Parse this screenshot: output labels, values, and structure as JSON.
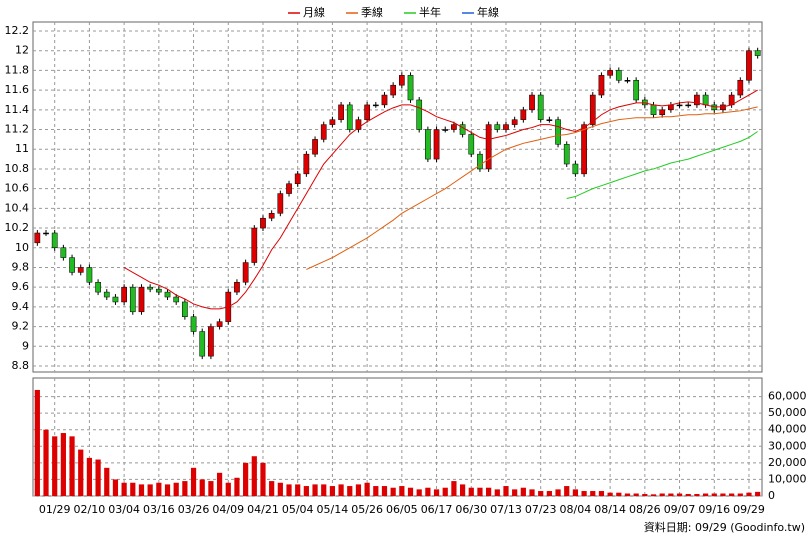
{
  "chart_data": {
    "type": "candlestick",
    "categories": [
      null,
      null,
      "01/29",
      null,
      null,
      null,
      "02/10",
      null,
      null,
      null,
      "03/04",
      null,
      null,
      null,
      "03/16",
      null,
      null,
      null,
      "03/26",
      null,
      null,
      null,
      "04/09",
      null,
      null,
      null,
      "04/21",
      null,
      null,
      null,
      "05/04",
      null,
      null,
      null,
      "05/14",
      null,
      null,
      null,
      "05/26",
      null,
      null,
      null,
      "06/05",
      null,
      null,
      null,
      "06/17",
      null,
      null,
      null,
      "06/30",
      null,
      null,
      null,
      "07/13",
      null,
      null,
      null,
      "07/23",
      null,
      null,
      null,
      "08/04",
      null,
      null,
      null,
      "08/14",
      null,
      null,
      null,
      "08/26",
      null,
      null,
      null,
      "09/07",
      null,
      null,
      null,
      "09/16",
      null,
      null,
      null,
      "09/29",
      null
    ],
    "candles": [
      [
        10.05,
        10.18,
        10.02,
        10.15
      ],
      [
        10.15,
        10.18,
        10.12,
        10.15
      ],
      [
        10.15,
        10.18,
        9.97,
        10.0
      ],
      [
        10.0,
        10.03,
        9.87,
        9.9
      ],
      [
        9.9,
        9.93,
        9.72,
        9.75
      ],
      [
        9.75,
        9.83,
        9.72,
        9.8
      ],
      [
        9.8,
        9.83,
        9.62,
        9.65
      ],
      [
        9.65,
        9.68,
        9.52,
        9.55
      ],
      [
        9.55,
        9.58,
        9.47,
        9.5
      ],
      [
        9.5,
        9.53,
        9.42,
        9.45
      ],
      [
        9.45,
        9.63,
        9.42,
        9.6
      ],
      [
        9.6,
        9.63,
        9.32,
        9.35
      ],
      [
        9.35,
        9.63,
        9.32,
        9.6
      ],
      [
        9.6,
        9.63,
        9.55,
        9.58
      ],
      [
        9.58,
        9.61,
        9.52,
        9.55
      ],
      [
        9.55,
        9.58,
        9.47,
        9.5
      ],
      [
        9.5,
        9.53,
        9.42,
        9.45
      ],
      [
        9.45,
        9.48,
        9.27,
        9.3
      ],
      [
        9.3,
        9.33,
        9.12,
        9.15
      ],
      [
        9.15,
        9.18,
        8.87,
        8.9
      ],
      [
        8.9,
        9.23,
        8.87,
        9.2
      ],
      [
        9.2,
        9.28,
        9.17,
        9.25
      ],
      [
        9.25,
        9.58,
        9.22,
        9.55
      ],
      [
        9.55,
        9.68,
        9.52,
        9.65
      ],
      [
        9.65,
        9.88,
        9.62,
        9.85
      ],
      [
        9.85,
        10.23,
        9.82,
        10.2
      ],
      [
        10.2,
        10.33,
        10.17,
        10.3
      ],
      [
        10.3,
        10.38,
        10.27,
        10.35
      ],
      [
        10.35,
        10.58,
        10.32,
        10.55
      ],
      [
        10.55,
        10.68,
        10.52,
        10.65
      ],
      [
        10.65,
        10.78,
        10.62,
        10.75
      ],
      [
        10.75,
        10.98,
        10.72,
        10.95
      ],
      [
        10.95,
        11.13,
        10.92,
        11.1
      ],
      [
        11.1,
        11.28,
        11.07,
        11.25
      ],
      [
        11.25,
        11.33,
        11.22,
        11.3
      ],
      [
        11.3,
        11.48,
        11.27,
        11.45
      ],
      [
        11.45,
        11.48,
        11.17,
        11.2
      ],
      [
        11.2,
        11.33,
        11.17,
        11.3
      ],
      [
        11.3,
        11.48,
        11.27,
        11.45
      ],
      [
        11.45,
        11.48,
        11.42,
        11.45
      ],
      [
        11.45,
        11.58,
        11.42,
        11.55
      ],
      [
        11.55,
        11.68,
        11.52,
        11.65
      ],
      [
        11.65,
        11.78,
        11.62,
        11.75
      ],
      [
        11.75,
        11.78,
        11.47,
        11.5
      ],
      [
        11.5,
        11.53,
        11.17,
        11.2
      ],
      [
        11.2,
        11.23,
        10.87,
        10.9
      ],
      [
        10.9,
        11.23,
        10.87,
        11.2
      ],
      [
        11.2,
        11.23,
        11.17,
        11.2
      ],
      [
        11.2,
        11.28,
        11.17,
        11.25
      ],
      [
        11.25,
        11.28,
        11.12,
        11.15
      ],
      [
        11.15,
        11.18,
        10.92,
        10.95
      ],
      [
        10.95,
        10.98,
        10.77,
        10.8
      ],
      [
        10.8,
        11.28,
        10.77,
        11.25
      ],
      [
        11.25,
        11.28,
        11.17,
        11.2
      ],
      [
        11.2,
        11.28,
        11.17,
        11.25
      ],
      [
        11.25,
        11.33,
        11.22,
        11.3
      ],
      [
        11.3,
        11.43,
        11.27,
        11.4
      ],
      [
        11.4,
        11.58,
        11.37,
        11.55
      ],
      [
        11.55,
        11.58,
        11.27,
        11.3
      ],
      [
        11.3,
        11.33,
        11.27,
        11.3
      ],
      [
        11.3,
        11.33,
        11.02,
        11.05
      ],
      [
        11.05,
        11.08,
        10.82,
        10.85
      ],
      [
        10.85,
        10.88,
        10.72,
        10.75
      ],
      [
        10.75,
        11.28,
        10.72,
        11.25
      ],
      [
        11.25,
        11.58,
        11.22,
        11.55
      ],
      [
        11.55,
        11.78,
        11.52,
        11.75
      ],
      [
        11.75,
        11.83,
        11.72,
        11.8
      ],
      [
        11.8,
        11.83,
        11.67,
        11.7
      ],
      [
        11.7,
        11.73,
        11.67,
        11.7
      ],
      [
        11.7,
        11.73,
        11.47,
        11.5
      ],
      [
        11.5,
        11.53,
        11.42,
        11.45
      ],
      [
        11.45,
        11.48,
        11.32,
        11.35
      ],
      [
        11.35,
        11.43,
        11.32,
        11.4
      ],
      [
        11.4,
        11.48,
        11.37,
        11.45
      ],
      [
        11.45,
        11.48,
        11.42,
        11.45
      ],
      [
        11.45,
        11.48,
        11.42,
        11.45
      ],
      [
        11.45,
        11.58,
        11.42,
        11.55
      ],
      [
        11.55,
        11.58,
        11.42,
        11.45
      ],
      [
        11.45,
        11.48,
        11.37,
        11.4
      ],
      [
        11.4,
        11.48,
        11.37,
        11.45
      ],
      [
        11.45,
        11.58,
        11.42,
        11.55
      ],
      [
        11.55,
        11.73,
        11.52,
        11.7
      ],
      [
        11.7,
        12.03,
        11.67,
        12.0
      ],
      [
        12.0,
        12.03,
        11.92,
        11.95
      ]
    ],
    "up_color": "#dd0000",
    "down_color": "#22bb22",
    "ylim": [
      8.8,
      12.2
    ],
    "yticks": [
      8.8,
      9,
      9.2,
      9.4,
      9.6,
      9.8,
      10,
      10.2,
      10.4,
      10.6,
      10.8,
      11,
      11.2,
      11.4,
      11.6,
      11.8,
      12,
      12.2
    ],
    "grid": true,
    "legend": "top",
    "series": [
      {
        "name": "月線",
        "color": "#dd0000",
        "values": [
          null,
          null,
          null,
          null,
          null,
          null,
          null,
          null,
          null,
          null,
          9.8,
          9.75,
          9.7,
          9.65,
          9.62,
          9.58,
          9.52,
          9.48,
          9.43,
          9.4,
          9.38,
          9.38,
          9.4,
          9.45,
          9.55,
          9.68,
          9.82,
          9.98,
          10.1,
          10.25,
          10.4,
          10.55,
          10.7,
          10.85,
          10.95,
          11.05,
          11.15,
          11.22,
          11.28,
          11.33,
          11.38,
          11.42,
          11.45,
          11.45,
          11.42,
          11.38,
          11.33,
          11.3,
          11.27,
          11.22,
          11.17,
          11.12,
          11.1,
          11.12,
          11.14,
          11.17,
          11.2,
          11.22,
          11.25,
          11.25,
          11.23,
          11.2,
          11.18,
          11.22,
          11.28,
          11.35,
          11.4,
          11.43,
          11.45,
          11.47,
          11.47,
          11.45,
          11.44,
          11.45,
          11.47,
          11.48,
          11.47,
          11.45,
          11.43,
          11.43,
          11.45,
          11.5,
          11.55,
          11.6
        ]
      },
      {
        "name": "季線",
        "color": "#e06010",
        "values": [
          null,
          null,
          null,
          null,
          null,
          null,
          null,
          null,
          null,
          null,
          null,
          null,
          null,
          null,
          null,
          null,
          null,
          null,
          null,
          null,
          null,
          null,
          null,
          null,
          null,
          null,
          null,
          null,
          null,
          null,
          null,
          9.78,
          9.82,
          9.86,
          9.9,
          9.95,
          10.0,
          10.05,
          10.1,
          10.16,
          10.22,
          10.28,
          10.35,
          10.4,
          10.45,
          10.5,
          10.55,
          10.6,
          10.66,
          10.72,
          10.78,
          10.84,
          10.9,
          10.95,
          11.0,
          11.03,
          11.06,
          11.08,
          11.1,
          11.12,
          11.14,
          11.15,
          11.17,
          11.2,
          11.23,
          11.26,
          11.28,
          11.3,
          11.31,
          11.32,
          11.32,
          11.32,
          11.33,
          11.33,
          11.34,
          11.35,
          11.35,
          11.36,
          11.36,
          11.37,
          11.38,
          11.39,
          11.41,
          11.43
        ]
      },
      {
        "name": "半年",
        "color": "#22cc22",
        "values": [
          null,
          null,
          null,
          null,
          null,
          null,
          null,
          null,
          null,
          null,
          null,
          null,
          null,
          null,
          null,
          null,
          null,
          null,
          null,
          null,
          null,
          null,
          null,
          null,
          null,
          null,
          null,
          null,
          null,
          null,
          null,
          null,
          null,
          null,
          null,
          null,
          null,
          null,
          null,
          null,
          null,
          null,
          null,
          null,
          null,
          null,
          null,
          null,
          null,
          null,
          null,
          null,
          null,
          null,
          null,
          null,
          null,
          null,
          null,
          null,
          null,
          10.5,
          10.52,
          10.56,
          10.6,
          10.63,
          10.66,
          10.69,
          10.72,
          10.75,
          10.78,
          10.8,
          10.83,
          10.86,
          10.88,
          10.9,
          10.93,
          10.96,
          10.99,
          11.02,
          11.05,
          11.08,
          11.12,
          11.18
        ]
      },
      {
        "name": "年線",
        "color": "#2060dd",
        "values": [
          null,
          null,
          null,
          null,
          null,
          null,
          null,
          null,
          null,
          null,
          null,
          null,
          null,
          null,
          null,
          null,
          null,
          null,
          null,
          null,
          null,
          null,
          null,
          null,
          null,
          null,
          null,
          null,
          null,
          null,
          null,
          null,
          null,
          null,
          null,
          null,
          null,
          null,
          null,
          null,
          null,
          null,
          null,
          null,
          null,
          null,
          null,
          null,
          null,
          null,
          null,
          null,
          null,
          null,
          null,
          null,
          null,
          null,
          null,
          null,
          null,
          null,
          null,
          null,
          null,
          null,
          null,
          null,
          null,
          null,
          null,
          null,
          null,
          null,
          null,
          null,
          null,
          null,
          null,
          null,
          null,
          null,
          null,
          null
        ]
      }
    ],
    "volume": {
      "color": "#dd0000",
      "values": [
        64000,
        40000,
        36000,
        38000,
        36000,
        28000,
        23000,
        22000,
        17000,
        10000,
        8000,
        8000,
        7000,
        7000,
        8000,
        7000,
        8000,
        9000,
        17000,
        10000,
        9000,
        14000,
        8000,
        11000,
        20000,
        24000,
        20000,
        9000,
        8000,
        7000,
        7000,
        6000,
        7000,
        7000,
        6000,
        7000,
        6000,
        7000,
        8000,
        6000,
        6000,
        5000,
        6000,
        5000,
        4000,
        5000,
        4000,
        5000,
        9000,
        7000,
        5000,
        5000,
        5000,
        4000,
        6000,
        4000,
        5000,
        4000,
        3000,
        3000,
        4000,
        6000,
        4000,
        3000,
        3000,
        3000,
        2000,
        2000,
        1500,
        1500,
        1200,
        1000,
        1500,
        1500,
        1500,
        1200,
        1200,
        1500,
        1500,
        1500,
        1500,
        1500,
        2000,
        2500
      ],
      "ylim": [
        0,
        70000
      ],
      "yticks": [
        0,
        {
          "value": 10000,
          "label": "10,000"
        },
        {
          "value": 20000,
          "label": "20,000"
        },
        {
          "value": 30000,
          "label": "30,000"
        },
        {
          "value": 40000,
          "label": "40,000"
        },
        {
          "value": 50000,
          "label": "50,000"
        },
        {
          "value": 60000,
          "label": "60,000"
        }
      ]
    },
    "footer": "資料日期: 09/29 (Goodinfo.tw)"
  }
}
